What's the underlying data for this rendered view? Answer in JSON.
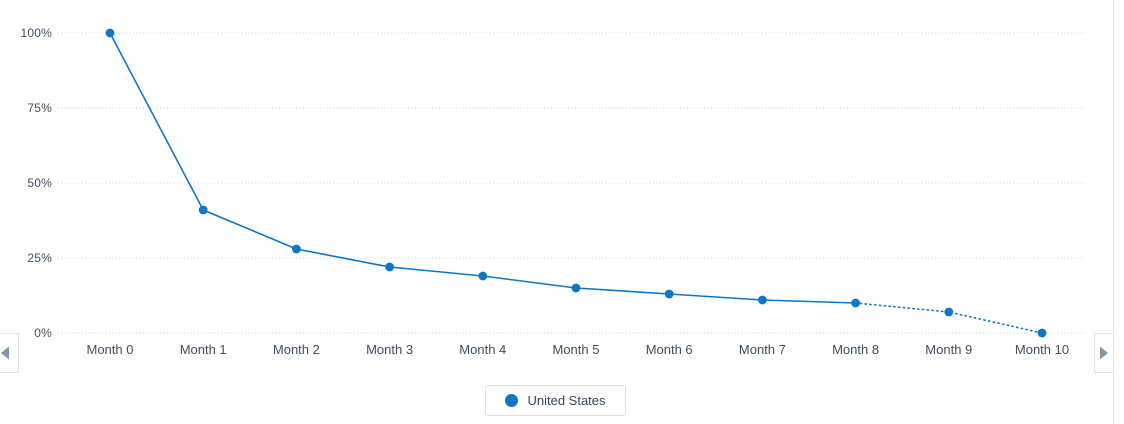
{
  "chart_data": {
    "type": "line",
    "title": "",
    "xlabel": "",
    "ylabel": "",
    "categories": [
      "Month 0",
      "Month 1",
      "Month 2",
      "Month 3",
      "Month 4",
      "Month 5",
      "Month 6",
      "Month 7",
      "Month 8",
      "Month 9",
      "Month 10"
    ],
    "series": [
      {
        "name": "United States",
        "color": "#0d76c8",
        "values": [
          100,
          41,
          28,
          22,
          19,
          15,
          13,
          11,
          10,
          7,
          0
        ],
        "dotted_from_index": 8
      }
    ],
    "y_ticks": [
      {
        "label": "0%",
        "value": 0
      },
      {
        "label": "25%",
        "value": 25
      },
      {
        "label": "50%",
        "value": 50
      },
      {
        "label": "75%",
        "value": 75
      },
      {
        "label": "100%",
        "value": 100
      }
    ],
    "ylim": [
      0,
      100
    ],
    "grid": "horizontal-dotted",
    "legend_position": "bottom-center"
  },
  "legend": {
    "items": [
      {
        "label": "United States",
        "color": "#0d76c8"
      }
    ]
  },
  "pager": {
    "left_icon": "left-arrow",
    "right_icon": "right-arrow"
  },
  "colors": {
    "series_blue": "#0d76c8",
    "gridline": "#c9cdd2",
    "axis_text": "#3e4f60",
    "legend_text": "#33475b",
    "panel_border": "#e0e3e7",
    "button_border": "#dfe3e8",
    "arrow_icon": "#8296aa",
    "background": "#ffffff"
  }
}
